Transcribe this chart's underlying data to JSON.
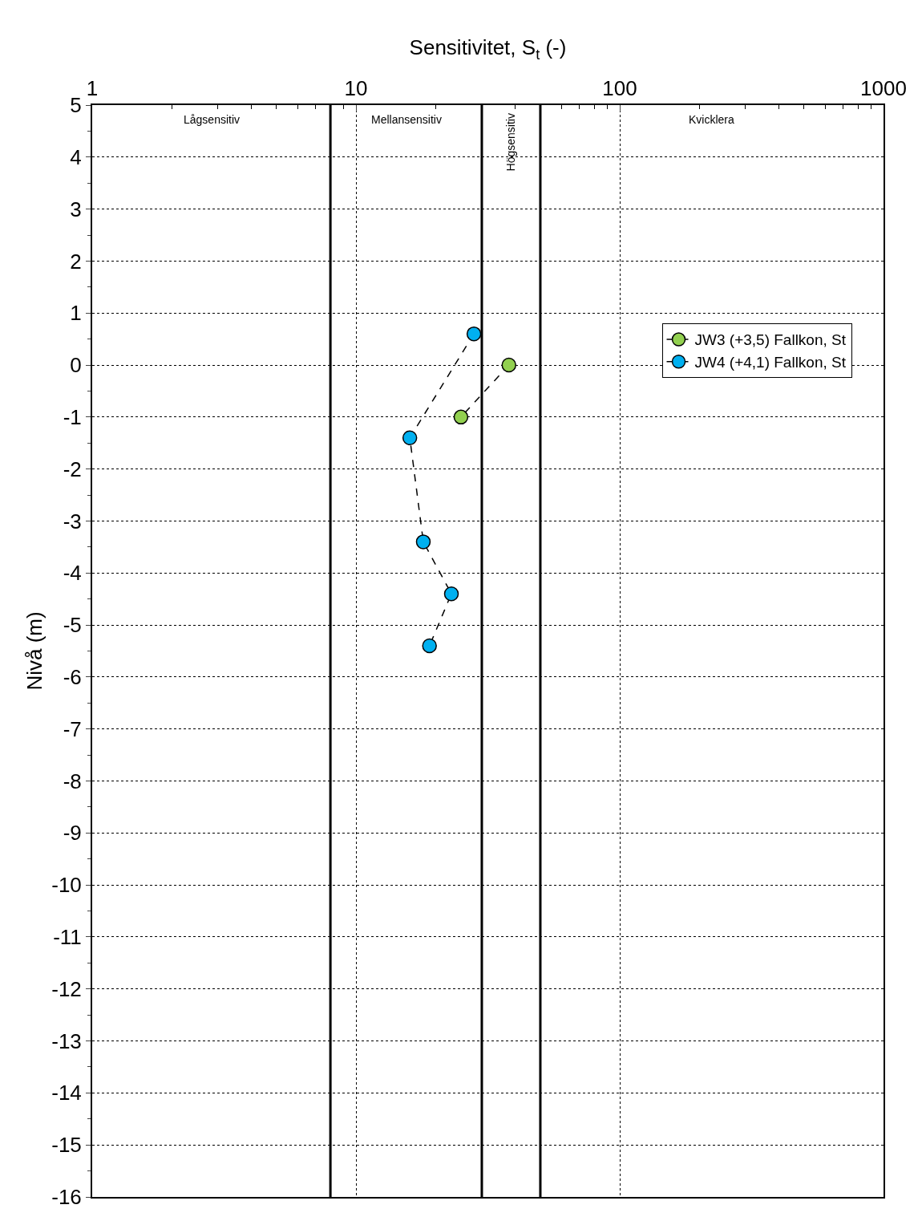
{
  "chart_data": {
    "type": "line",
    "xlabel": "Sensitivitet, S$_{t}$ (-)",
    "ylabel": "Nivå (m)",
    "log": "x",
    "xlim": [
      1,
      1000
    ],
    "xticks": [
      1,
      10,
      100,
      1000
    ],
    "ylim": [
      -16,
      5
    ],
    "yticks": [
      5,
      4,
      3,
      2,
      1,
      0,
      -1,
      -2,
      -3,
      -4,
      -5,
      -6,
      -7,
      -8,
      -9,
      -10,
      -11,
      -12,
      -13,
      -14,
      -15,
      -16
    ],
    "grid": true,
    "legend": "top right",
    "marker": "circle",
    "line_style": "dashed",
    "series": [
      {
        "name": "JW3 (+3,5) Fallkon, St",
        "color": "#92d050",
        "x": [
          38,
          25
        ],
        "values": [
          0,
          -1
        ]
      },
      {
        "name": "JW4 (+4,1) Fallkon, St",
        "color": "#00b0f0",
        "x": [
          28,
          16,
          18,
          23,
          19
        ],
        "values": [
          0.6,
          -1.4,
          -3.4,
          -4.4,
          -5.4
        ]
      }
    ],
    "ref_lines": [
      {
        "axis": "x",
        "value": 8,
        "color": "#000000"
      },
      {
        "axis": "x",
        "value": 30,
        "color": "#000000"
      },
      {
        "axis": "x",
        "value": 50,
        "color": "#000000"
      }
    ],
    "annotations": [
      "Lågsensitiv",
      "Mellansensitiv",
      "Högsensitiv",
      "Kvicklera"
    ]
  }
}
